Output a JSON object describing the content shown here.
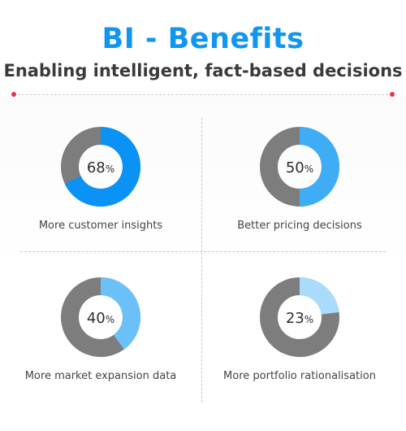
{
  "header": {
    "title": "BI - Benefits",
    "subtitle": "Enabling intelligent, fact-based decisions"
  },
  "colors": {
    "title": "#1196f0",
    "track": "#7d7d7d",
    "accent_dot": "#e8344e"
  },
  "chart_data": {
    "type": "pie",
    "variant": "donut",
    "charts": [
      {
        "label": "More customer insights",
        "value": 68,
        "unit": "%",
        "color": "#0a92f4"
      },
      {
        "label": "Better pricing decisions",
        "value": 50,
        "unit": "%",
        "color": "#3fadf6"
      },
      {
        "label": "More market expansion data",
        "value": 40,
        "unit": "%",
        "color": "#6bc0f8"
      },
      {
        "label": "More portfolio rationalisation",
        "value": 23,
        "unit": "%",
        "color": "#a9dbfb"
      }
    ]
  }
}
